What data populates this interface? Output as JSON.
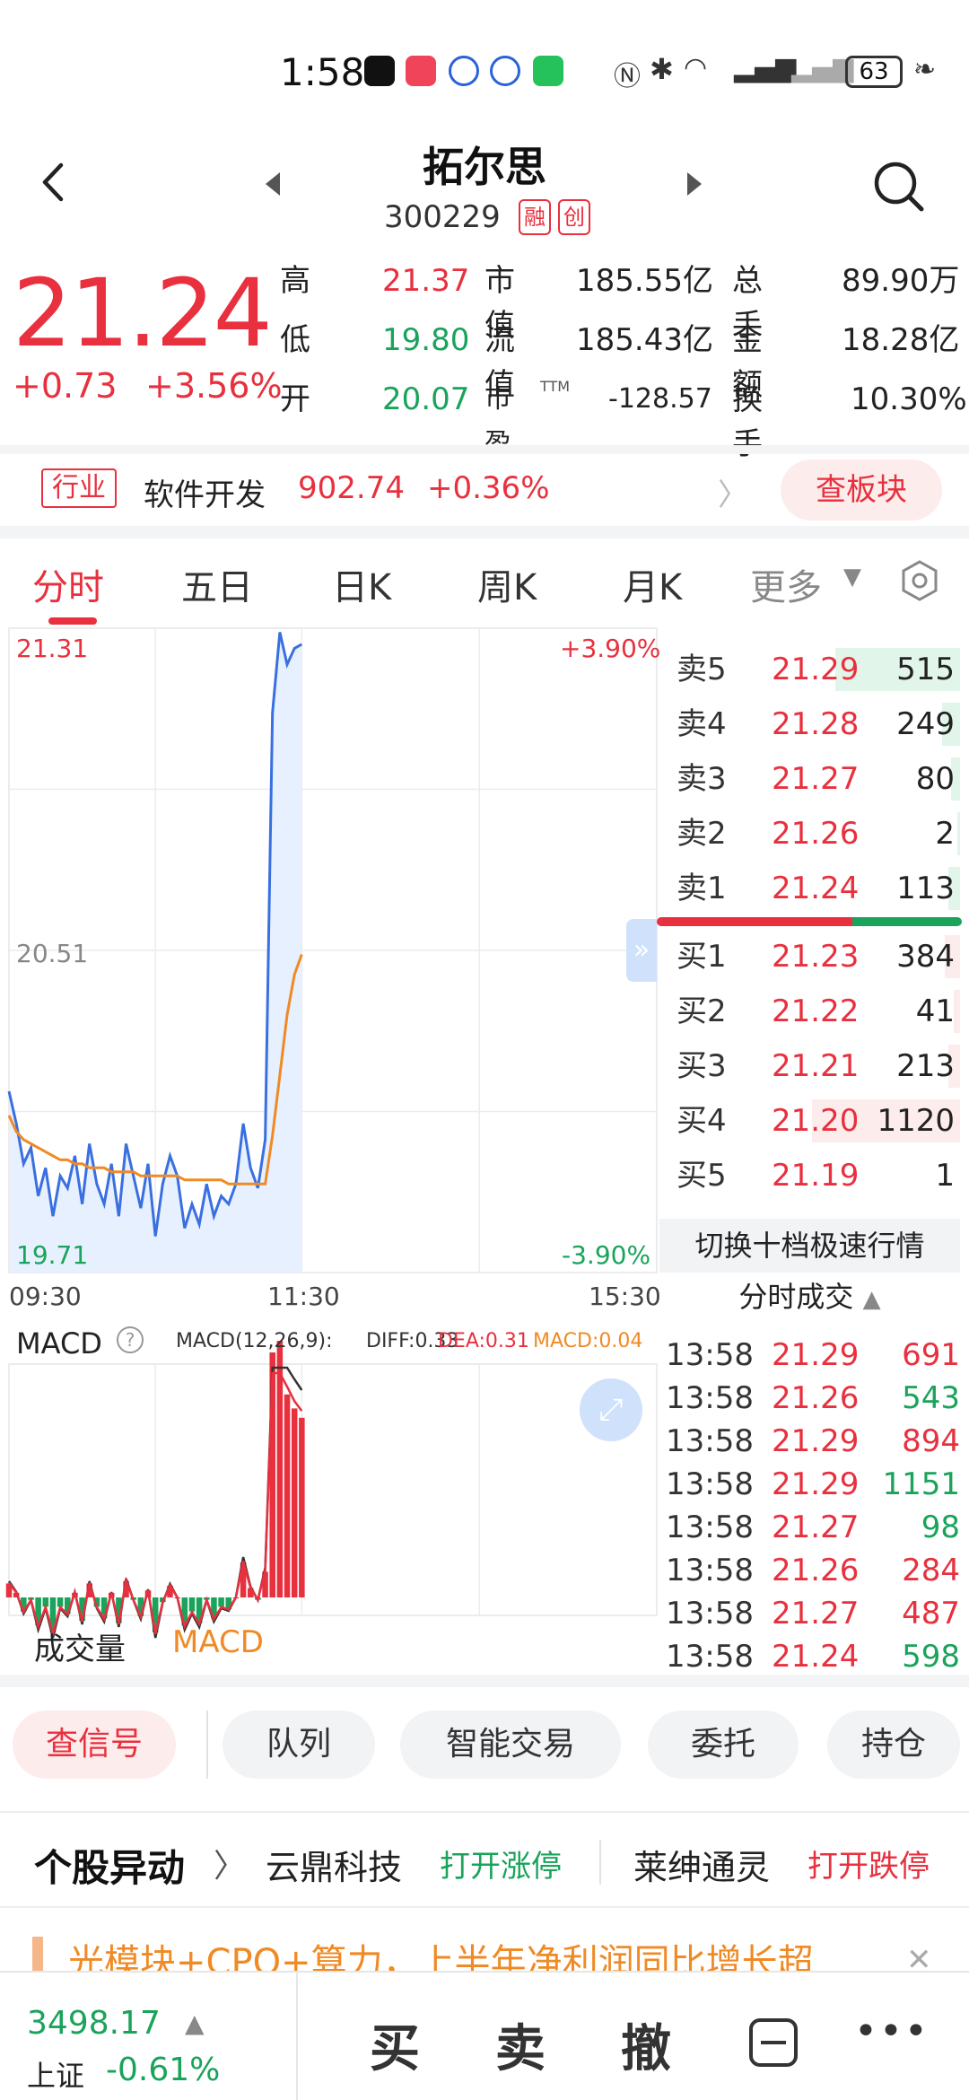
{
  "status_bar": {
    "time": "1:58",
    "battery": "63"
  },
  "header": {
    "name": "拓尔思",
    "code": "300229",
    "tags": [
      "融",
      "创"
    ]
  },
  "quote": {
    "price": "21.24",
    "change": "+0.73",
    "change_pct": "+3.56%",
    "rows": [
      {
        "l1": "高",
        "v1": "21.37",
        "l2": "市值",
        "v2": "185.55亿",
        "l3": "总手",
        "v3": "89.90万"
      },
      {
        "l1": "低",
        "v1": "19.80",
        "l2": "流值",
        "v2": "185.43亿",
        "l3": "金额",
        "v3": "18.28亿"
      },
      {
        "l1": "开",
        "v1": "20.07",
        "l2": "市盈",
        "l2_sup": "TTM",
        "v2": "-128.57",
        "l3": "换手",
        "v3": "10.30%"
      }
    ]
  },
  "industry": {
    "tag": "行业",
    "name": "软件开发",
    "value": "902.74",
    "pct": "+0.36%",
    "button": "查板块"
  },
  "tabs": [
    "分时",
    "五日",
    "日K",
    "周K",
    "月K",
    "更多"
  ],
  "chart": {
    "y_top": "21.31",
    "y_mid": "20.51",
    "y_bottom": "19.71",
    "pct_top": "+3.90%",
    "pct_bottom": "-3.90%",
    "x_labels": [
      "09:30",
      "11:30",
      "15:30"
    ],
    "macd_label": "MACD",
    "macd_params": "MACD(12,26,9):",
    "diff": "DIFF:0.33",
    "dea": "DEA:0.31",
    "macd": "MACD:0.04",
    "indicators": [
      "成交量",
      "MACD"
    ]
  },
  "chart_data": {
    "type": "line",
    "title": "",
    "xlabel": "",
    "ylabel": "",
    "ylim": [
      19.71,
      21.31
    ],
    "x_ticks": [
      "09:30",
      "11:30",
      "15:30"
    ],
    "series": [
      {
        "name": "",
        "values": [
          20.16,
          20.08,
          19.98,
          20.02,
          19.9,
          19.97,
          19.85,
          19.95,
          19.92,
          20.0,
          19.88,
          20.03,
          19.93,
          19.88,
          19.98,
          19.85,
          20.03,
          19.95,
          19.87,
          19.98,
          19.8,
          19.93,
          20.0,
          19.95,
          19.82,
          19.88,
          19.83,
          19.93,
          19.85,
          19.9,
          19.88,
          19.93,
          20.08,
          19.97,
          19.92,
          20.04,
          21.1,
          21.3,
          21.22,
          21.26,
          21.27
        ]
      },
      {
        "name": "",
        "values": [
          20.1,
          20.06,
          20.04,
          20.03,
          20.02,
          20.01,
          20.0,
          19.99,
          19.99,
          19.98,
          19.98,
          19.97,
          19.97,
          19.97,
          19.96,
          19.96,
          19.96,
          19.96,
          19.95,
          19.95,
          19.95,
          19.95,
          19.95,
          19.95,
          19.94,
          19.94,
          19.94,
          19.94,
          19.94,
          19.94,
          19.93,
          19.93,
          19.93,
          19.93,
          19.93,
          19.93,
          20.05,
          20.2,
          20.35,
          20.45,
          20.5
        ]
      }
    ]
  },
  "order_book": {
    "asks": [
      {
        "label": "卖5",
        "price": "21.29",
        "vol": "515",
        "bar": 0.42
      },
      {
        "label": "卖4",
        "price": "21.28",
        "vol": "249",
        "bar": 0.06
      },
      {
        "label": "卖3",
        "price": "21.27",
        "vol": "80",
        "bar": 0.03
      },
      {
        "label": "卖2",
        "price": "21.26",
        "vol": "2",
        "bar": 0.01
      },
      {
        "label": "卖1",
        "price": "21.24",
        "vol": "113",
        "bar": 0.04
      }
    ],
    "bids": [
      {
        "label": "买1",
        "price": "21.23",
        "vol": "384",
        "bar": 0.05
      },
      {
        "label": "买2",
        "price": "21.22",
        "vol": "41",
        "bar": 0.02
      },
      {
        "label": "买3",
        "price": "21.21",
        "vol": "213",
        "bar": 0.04
      },
      {
        "label": "买4",
        "price": "21.20",
        "vol": "1120",
        "bar": 0.5
      },
      {
        "label": "买5",
        "price": "21.19",
        "vol": "1",
        "bar": 0.0
      }
    ],
    "switch_label": "切换十档极速行情",
    "ticks_title": "分时成交"
  },
  "ticks": [
    {
      "time": "13:58",
      "price": "21.29",
      "vol": "691",
      "dir": "red"
    },
    {
      "time": "13:58",
      "price": "21.26",
      "vol": "543",
      "dir": "green"
    },
    {
      "time": "13:58",
      "price": "21.29",
      "vol": "894",
      "dir": "red"
    },
    {
      "time": "13:58",
      "price": "21.29",
      "vol": "1151",
      "dir": "green"
    },
    {
      "time": "13:58",
      "price": "21.27",
      "vol": "98",
      "dir": "green"
    },
    {
      "time": "13:58",
      "price": "21.26",
      "vol": "284",
      "dir": "red"
    },
    {
      "time": "13:58",
      "price": "21.27",
      "vol": "487",
      "dir": "red"
    },
    {
      "time": "13:58",
      "price": "21.24",
      "vol": "598",
      "dir": "green"
    }
  ],
  "actions": [
    "查信号",
    "队列",
    "智能交易",
    "委托",
    "持仓"
  ],
  "anomaly": {
    "title": "个股异动",
    "items": [
      {
        "name": "云鼎科技",
        "event": "打开涨停"
      },
      {
        "name": "莱绅通灵",
        "event": "打开跌停"
      }
    ]
  },
  "news": {
    "text": "光模块+CPO+算力，上半年净利润同比增长超"
  },
  "bottom": {
    "index_value": "3498.17",
    "index_name": "上证",
    "index_pct": "-0.61%",
    "buttons": [
      "买",
      "卖",
      "撤"
    ]
  },
  "colors": {
    "up": "#e8303e",
    "down": "#1aa35b",
    "line": "#3a6fe0",
    "avg": "#f08a24"
  }
}
